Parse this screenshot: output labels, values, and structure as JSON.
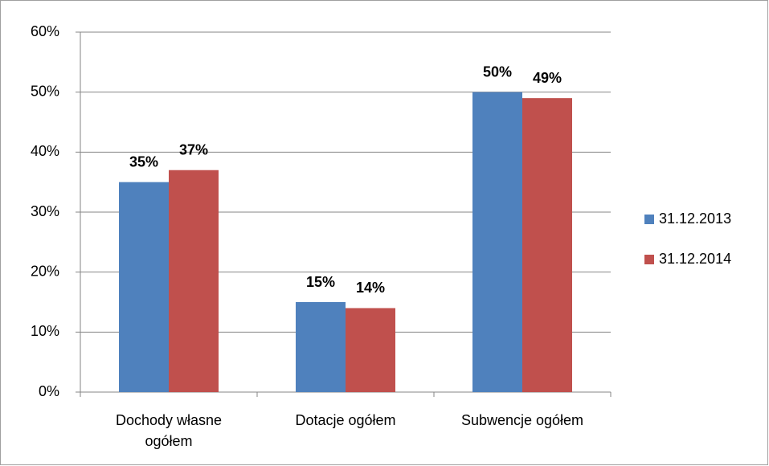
{
  "chart_data": {
    "type": "bar",
    "categories": [
      "Dochody własne ogółem",
      "Dotacje ogółem",
      "Subwencje ogółem"
    ],
    "series": [
      {
        "name": "31.12.2013",
        "color": "#4f81bd",
        "values": [
          35,
          15,
          50
        ],
        "value_labels": [
          "35%",
          "15%",
          "50%"
        ]
      },
      {
        "name": "31.12.2014",
        "color": "#c0504d",
        "values": [
          37,
          14,
          49
        ],
        "value_labels": [
          "37%",
          "14%",
          "49%"
        ]
      }
    ],
    "ylim": [
      0,
      60
    ],
    "yticks": [
      {
        "value": 0,
        "label": "0%"
      },
      {
        "value": 10,
        "label": "10%"
      },
      {
        "value": 20,
        "label": "20%"
      },
      {
        "value": 30,
        "label": "30%"
      },
      {
        "value": 40,
        "label": "40%"
      },
      {
        "value": 50,
        "label": "50%"
      },
      {
        "value": 60,
        "label": "60%"
      }
    ],
    "grid": true,
    "legend": "right"
  }
}
